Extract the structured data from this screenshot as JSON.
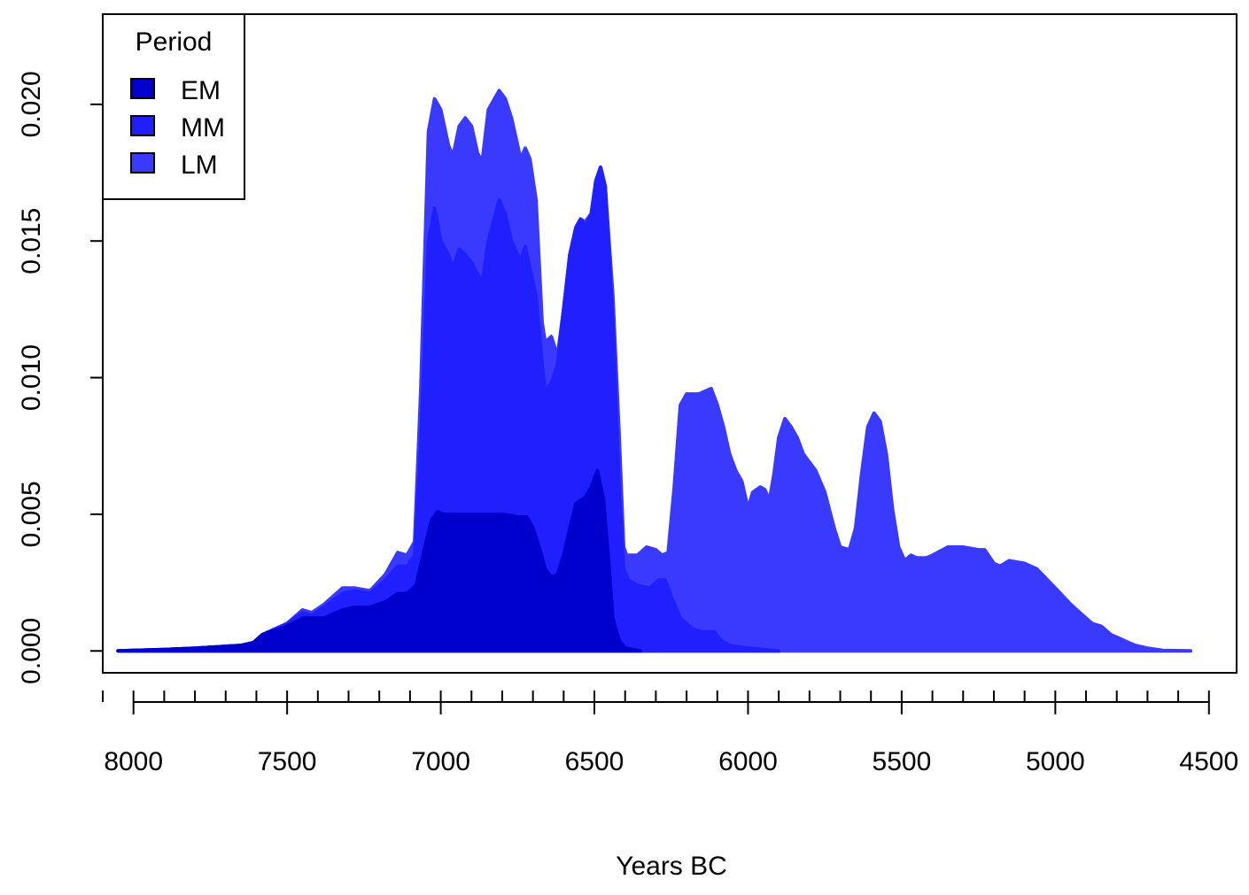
{
  "chart_data": {
    "type": "area",
    "stacked": true,
    "title": "",
    "xlabel": "Years BC",
    "ylabel": "",
    "xlim": [
      8100,
      4410
    ],
    "ylim": [
      -0.0008,
      0.0233
    ],
    "x_ticks": [
      8000,
      7500,
      7000,
      6500,
      6000,
      5500,
      5000,
      4500
    ],
    "x_tick_labels": [
      "8000",
      "7500",
      "7000",
      "6500",
      "6000",
      "5500",
      "5000",
      "4500"
    ],
    "x_minor_tick_step": 100,
    "x_minor_range": [
      8100,
      4500
    ],
    "y_ticks": [
      0,
      0.005,
      0.01,
      0.015,
      0.02
    ],
    "y_tick_labels": [
      "0.000",
      "0.005",
      "0.010",
      "0.015",
      "0.020"
    ],
    "legend": {
      "title": "Period",
      "position": "top-left",
      "entries": [
        {
          "label": "EM",
          "color": "#0000CD"
        },
        {
          "label": "MM",
          "color": "#2020FF"
        },
        {
          "label": "LM",
          "color": "#3A3AFF"
        }
      ]
    },
    "series": [
      {
        "name": "LM",
        "color": "#3A3AFF",
        "points": [
          [
            8050,
            0
          ],
          [
            7900,
            5e-05
          ],
          [
            7800,
            0.0001
          ],
          [
            7650,
            0.0002
          ],
          [
            7610,
            0.0003
          ],
          [
            7580,
            0.0006
          ],
          [
            7500,
            0.001
          ],
          [
            7450,
            0.0015
          ],
          [
            7420,
            0.0014
          ],
          [
            7380,
            0.0017
          ],
          [
            7320,
            0.0023
          ],
          [
            7280,
            0.0023
          ],
          [
            7230,
            0.0022
          ],
          [
            7180,
            0.0028
          ],
          [
            7140,
            0.0036
          ],
          [
            7110,
            0.0035
          ],
          [
            7085,
            0.004
          ],
          [
            7065,
            0.0095
          ],
          [
            7040,
            0.019
          ],
          [
            7020,
            0.0202
          ],
          [
            7000,
            0.0198
          ],
          [
            6975,
            0.0185
          ],
          [
            6960,
            0.0181
          ],
          [
            6940,
            0.0192
          ],
          [
            6920,
            0.0195
          ],
          [
            6900,
            0.0192
          ],
          [
            6880,
            0.0182
          ],
          [
            6865,
            0.0179
          ],
          [
            6845,
            0.0198
          ],
          [
            6810,
            0.0205
          ],
          [
            6790,
            0.0202
          ],
          [
            6770,
            0.0195
          ],
          [
            6750,
            0.0185
          ],
          [
            6740,
            0.018
          ],
          [
            6725,
            0.0184
          ],
          [
            6710,
            0.018
          ],
          [
            6690,
            0.0165
          ],
          [
            6670,
            0.012
          ],
          [
            6660,
            0.0113
          ],
          [
            6640,
            0.0115
          ],
          [
            6620,
            0.0108
          ],
          [
            6600,
            0.0125
          ],
          [
            6580,
            0.0145
          ],
          [
            6560,
            0.0155
          ],
          [
            6545,
            0.0158
          ],
          [
            6530,
            0.0157
          ],
          [
            6510,
            0.016
          ],
          [
            6495,
            0.0172
          ],
          [
            6480,
            0.0177
          ],
          [
            6465,
            0.017
          ],
          [
            6440,
            0.013
          ],
          [
            6420,
            0.008
          ],
          [
            6405,
            0.0038
          ],
          [
            6395,
            0.0035
          ],
          [
            6360,
            0.0035
          ],
          [
            6330,
            0.0038
          ],
          [
            6300,
            0.0037
          ],
          [
            6280,
            0.0035
          ],
          [
            6260,
            0.0036
          ],
          [
            6240,
            0.006
          ],
          [
            6220,
            0.009
          ],
          [
            6200,
            0.0094
          ],
          [
            6160,
            0.0094
          ],
          [
            6120,
            0.0096
          ],
          [
            6100,
            0.009
          ],
          [
            6080,
            0.0082
          ],
          [
            6060,
            0.0072
          ],
          [
            6040,
            0.0066
          ],
          [
            6020,
            0.0062
          ],
          [
            6000,
            0.0052
          ],
          [
            5985,
            0.0058
          ],
          [
            5960,
            0.006
          ],
          [
            5945,
            0.0059
          ],
          [
            5930,
            0.0055
          ],
          [
            5915,
            0.0065
          ],
          [
            5900,
            0.0078
          ],
          [
            5880,
            0.0085
          ],
          [
            5860,
            0.0082
          ],
          [
            5840,
            0.0078
          ],
          [
            5820,
            0.0072
          ],
          [
            5780,
            0.0066
          ],
          [
            5750,
            0.0058
          ],
          [
            5720,
            0.0045
          ],
          [
            5700,
            0.0038
          ],
          [
            5670,
            0.0037
          ],
          [
            5650,
            0.0045
          ],
          [
            5630,
            0.0065
          ],
          [
            5610,
            0.0082
          ],
          [
            5590,
            0.0087
          ],
          [
            5570,
            0.0084
          ],
          [
            5550,
            0.0072
          ],
          [
            5530,
            0.0052
          ],
          [
            5510,
            0.0038
          ],
          [
            5490,
            0.0033
          ],
          [
            5470,
            0.0035
          ],
          [
            5450,
            0.0034
          ],
          [
            5420,
            0.0034
          ],
          [
            5400,
            0.0035
          ],
          [
            5350,
            0.0038
          ],
          [
            5300,
            0.0038
          ],
          [
            5250,
            0.0037
          ],
          [
            5230,
            0.0037
          ],
          [
            5200,
            0.0032
          ],
          [
            5180,
            0.0031
          ],
          [
            5150,
            0.0033
          ],
          [
            5100,
            0.0032
          ],
          [
            5060,
            0.003
          ],
          [
            5000,
            0.0023
          ],
          [
            4950,
            0.0017
          ],
          [
            4920,
            0.0014
          ],
          [
            4880,
            0.001
          ],
          [
            4850,
            0.0009
          ],
          [
            4820,
            0.0006
          ],
          [
            4780,
            0.0004
          ],
          [
            4740,
            0.0002
          ],
          [
            4700,
            0.0001
          ],
          [
            4650,
            2e-05
          ],
          [
            4560,
            0
          ]
        ]
      },
      {
        "name": "MM",
        "color": "#2020FF",
        "points": [
          [
            8050,
            0
          ],
          [
            7900,
            5e-05
          ],
          [
            7800,
            0.0001
          ],
          [
            7650,
            0.0002
          ],
          [
            7610,
            0.0003
          ],
          [
            7580,
            0.0006
          ],
          [
            7500,
            0.001
          ],
          [
            7450,
            0.0014
          ],
          [
            7420,
            0.0013
          ],
          [
            7380,
            0.0016
          ],
          [
            7320,
            0.0021
          ],
          [
            7280,
            0.0022
          ],
          [
            7230,
            0.0021
          ],
          [
            7180,
            0.0026
          ],
          [
            7140,
            0.0031
          ],
          [
            7110,
            0.0031
          ],
          [
            7085,
            0.0035
          ],
          [
            7065,
            0.0075
          ],
          [
            7040,
            0.015
          ],
          [
            7020,
            0.0162
          ],
          [
            7000,
            0.015
          ],
          [
            6975,
            0.0145
          ],
          [
            6960,
            0.014
          ],
          [
            6940,
            0.0147
          ],
          [
            6920,
            0.0145
          ],
          [
            6900,
            0.0142
          ],
          [
            6880,
            0.0138
          ],
          [
            6865,
            0.0135
          ],
          [
            6845,
            0.015
          ],
          [
            6810,
            0.0165
          ],
          [
            6790,
            0.016
          ],
          [
            6770,
            0.015
          ],
          [
            6750,
            0.0145
          ],
          [
            6740,
            0.0143
          ],
          [
            6725,
            0.0148
          ],
          [
            6710,
            0.014
          ],
          [
            6690,
            0.013
          ],
          [
            6670,
            0.0105
          ],
          [
            6660,
            0.0095
          ],
          [
            6640,
            0.0098
          ],
          [
            6620,
            0.0105
          ],
          [
            6600,
            0.0125
          ],
          [
            6580,
            0.0145
          ],
          [
            6560,
            0.0155
          ],
          [
            6545,
            0.0158
          ],
          [
            6530,
            0.0155
          ],
          [
            6510,
            0.016
          ],
          [
            6495,
            0.0172
          ],
          [
            6480,
            0.0177
          ],
          [
            6465,
            0.017
          ],
          [
            6440,
            0.012
          ],
          [
            6420,
            0.006
          ],
          [
            6405,
            0.003
          ],
          [
            6390,
            0.0026
          ],
          [
            6360,
            0.0024
          ],
          [
            6320,
            0.0023
          ],
          [
            6290,
            0.0026
          ],
          [
            6270,
            0.0026
          ],
          [
            6250,
            0.002
          ],
          [
            6220,
            0.0012
          ],
          [
            6180,
            0.0008
          ],
          [
            6150,
            0.0007
          ],
          [
            6110,
            0.0007
          ],
          [
            6090,
            0.0004
          ],
          [
            6060,
            0.0002
          ],
          [
            6000,
            0.0001
          ],
          [
            5950,
            5e-05
          ],
          [
            5900,
            0
          ]
        ]
      },
      {
        "name": "EM",
        "color": "#0000CD",
        "points": [
          [
            8050,
            0
          ],
          [
            7900,
            5e-05
          ],
          [
            7800,
            0.0001
          ],
          [
            7650,
            0.0002
          ],
          [
            7610,
            0.0003
          ],
          [
            7580,
            0.0006
          ],
          [
            7500,
            0.0009
          ],
          [
            7450,
            0.0012
          ],
          [
            7420,
            0.0012
          ],
          [
            7380,
            0.0012
          ],
          [
            7320,
            0.0015
          ],
          [
            7280,
            0.0016
          ],
          [
            7230,
            0.0016
          ],
          [
            7180,
            0.0018
          ],
          [
            7140,
            0.0021
          ],
          [
            7110,
            0.0021
          ],
          [
            7080,
            0.0024
          ],
          [
            7060,
            0.0034
          ],
          [
            7030,
            0.0048
          ],
          [
            7010,
            0.0051
          ],
          [
            6990,
            0.005
          ],
          [
            6950,
            0.005
          ],
          [
            6900,
            0.005
          ],
          [
            6850,
            0.005
          ],
          [
            6800,
            0.005
          ],
          [
            6750,
            0.0049
          ],
          [
            6720,
            0.0049
          ],
          [
            6700,
            0.0045
          ],
          [
            6680,
            0.0038
          ],
          [
            6660,
            0.003
          ],
          [
            6640,
            0.0027
          ],
          [
            6620,
            0.0028
          ],
          [
            6600,
            0.0035
          ],
          [
            6580,
            0.0045
          ],
          [
            6560,
            0.0054
          ],
          [
            6545,
            0.0055
          ],
          [
            6530,
            0.0056
          ],
          [
            6510,
            0.006
          ],
          [
            6490,
            0.0066
          ],
          [
            6470,
            0.0055
          ],
          [
            6455,
            0.0035
          ],
          [
            6440,
            0.0012
          ],
          [
            6420,
            0.0004
          ],
          [
            6400,
            0.0001
          ],
          [
            6350,
            0
          ]
        ]
      }
    ]
  }
}
